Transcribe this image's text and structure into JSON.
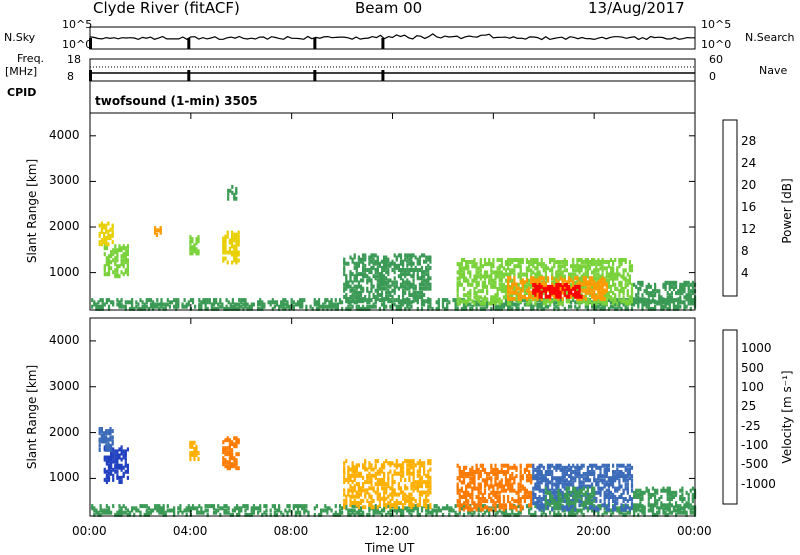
{
  "header": {
    "station": "Clyde River (fitACF)",
    "beam": "Beam 00",
    "date": "13/Aug/2017"
  },
  "top_panels": {
    "nsky_label": "N.Sky",
    "nsearch_label": "N.Search",
    "n_ticks_left": [
      "10^5",
      "10^0"
    ],
    "n_ticks_right": [
      "10^5",
      "10^0"
    ],
    "freq_label": "Freq.",
    "freq_unit": "[MHz]",
    "freq_ticks": [
      "18",
      "8"
    ],
    "nave_label": "Nave",
    "nave_ticks": [
      "60",
      "0"
    ],
    "cpid_label": "CPID",
    "cpid_value": "twofsound (1-min) 3505"
  },
  "chart_data": [
    {
      "type": "heatmap",
      "name": "power",
      "ylabel": "Slant Range [km]",
      "xlabel": "",
      "x_ticks": [
        "00:00",
        "04:00",
        "08:00",
        "12:00",
        "16:00",
        "20:00",
        "00:00"
      ],
      "xlim": [
        0,
        24
      ],
      "ylim": [
        180,
        4500
      ],
      "y_ticks": [
        1000,
        2000,
        3000,
        4000
      ],
      "colorbar": {
        "label": "Power [dB]",
        "ticks": [
          "28",
          "24",
          "20",
          "16",
          "12",
          "8",
          "4"
        ],
        "colors": [
          "#ff0000",
          "#ff5a00",
          "#ff9b00",
          "#e8d000",
          "#7ad23a",
          "#3a9a55",
          "#2060b0",
          "#1010ff"
        ]
      },
      "regions": [
        {
          "t0": 0.0,
          "t1": 24.0,
          "r0": 180,
          "r1": 420,
          "value": 8
        },
        {
          "t0": 0.5,
          "t1": 1.5,
          "r0": 900,
          "r1": 1600,
          "value": 12
        },
        {
          "t0": 0.3,
          "t1": 0.9,
          "r0": 1600,
          "r1": 2100,
          "value": 16
        },
        {
          "t0": 2.5,
          "t1": 2.8,
          "r0": 1800,
          "r1": 2000,
          "value": 20
        },
        {
          "t0": 3.9,
          "t1": 4.3,
          "r0": 1400,
          "r1": 1800,
          "value": 12
        },
        {
          "t0": 5.2,
          "t1": 5.9,
          "r0": 1200,
          "r1": 1900,
          "value": 16
        },
        {
          "t0": 5.4,
          "t1": 5.8,
          "r0": 2600,
          "r1": 2900,
          "value": 8
        },
        {
          "t0": 10.0,
          "t1": 13.5,
          "r0": 350,
          "r1": 1400,
          "value": 8
        },
        {
          "t0": 14.5,
          "t1": 21.5,
          "r0": 300,
          "r1": 1300,
          "value": 12
        },
        {
          "t0": 16.5,
          "t1": 20.5,
          "r0": 400,
          "r1": 900,
          "value": 20
        },
        {
          "t0": 17.5,
          "t1": 19.5,
          "r0": 450,
          "r1": 750,
          "value": 28
        },
        {
          "t0": 21.5,
          "t1": 24.0,
          "r0": 300,
          "r1": 800,
          "value": 8
        }
      ]
    },
    {
      "type": "heatmap",
      "name": "velocity",
      "ylabel": "Slant Range [km]",
      "xlabel": "Time UT",
      "x_ticks": [
        "00:00",
        "04:00",
        "08:00",
        "12:00",
        "16:00",
        "20:00",
        "00:00"
      ],
      "xlim": [
        0,
        24
      ],
      "ylim": [
        180,
        4500
      ],
      "y_ticks": [
        1000,
        2000,
        3000,
        4000
      ],
      "colorbar": {
        "label": "Velocity [m s⁻¹]",
        "ticks": [
          "1000",
          "500",
          "100",
          "25",
          "-25",
          "-100",
          "-500",
          "-1000"
        ],
        "colors": [
          "#2040c0",
          "#3a6ab8",
          "#3a9a55",
          "#7ad23a",
          "#c0c0c0",
          "#ffb000",
          "#ff7a00",
          "#ff3a00",
          "#ff0000"
        ]
      },
      "regions": [
        {
          "t0": 0.0,
          "t1": 24.0,
          "r0": 180,
          "r1": 420,
          "value": 100
        },
        {
          "t0": 0.5,
          "t1": 1.5,
          "r0": 900,
          "r1": 1700,
          "value": 1000
        },
        {
          "t0": 0.3,
          "t1": 0.9,
          "r0": 1600,
          "r1": 2100,
          "value": 500
        },
        {
          "t0": 3.9,
          "t1": 4.3,
          "r0": 1400,
          "r1": 1800,
          "value": -100
        },
        {
          "t0": 5.2,
          "t1": 5.9,
          "r0": 1200,
          "r1": 1900,
          "value": -500
        },
        {
          "t0": 10.0,
          "t1": 13.5,
          "r0": 350,
          "r1": 1400,
          "value": -100
        },
        {
          "t0": 14.5,
          "t1": 17.5,
          "r0": 300,
          "r1": 1300,
          "value": -500
        },
        {
          "t0": 17.5,
          "t1": 21.5,
          "r0": 300,
          "r1": 1300,
          "value": 500
        },
        {
          "t0": 18.0,
          "t1": 20.0,
          "r0": 400,
          "r1": 800,
          "value": 100
        },
        {
          "t0": 21.5,
          "t1": 24.0,
          "r0": 300,
          "r1": 800,
          "value": 100
        }
      ]
    }
  ]
}
